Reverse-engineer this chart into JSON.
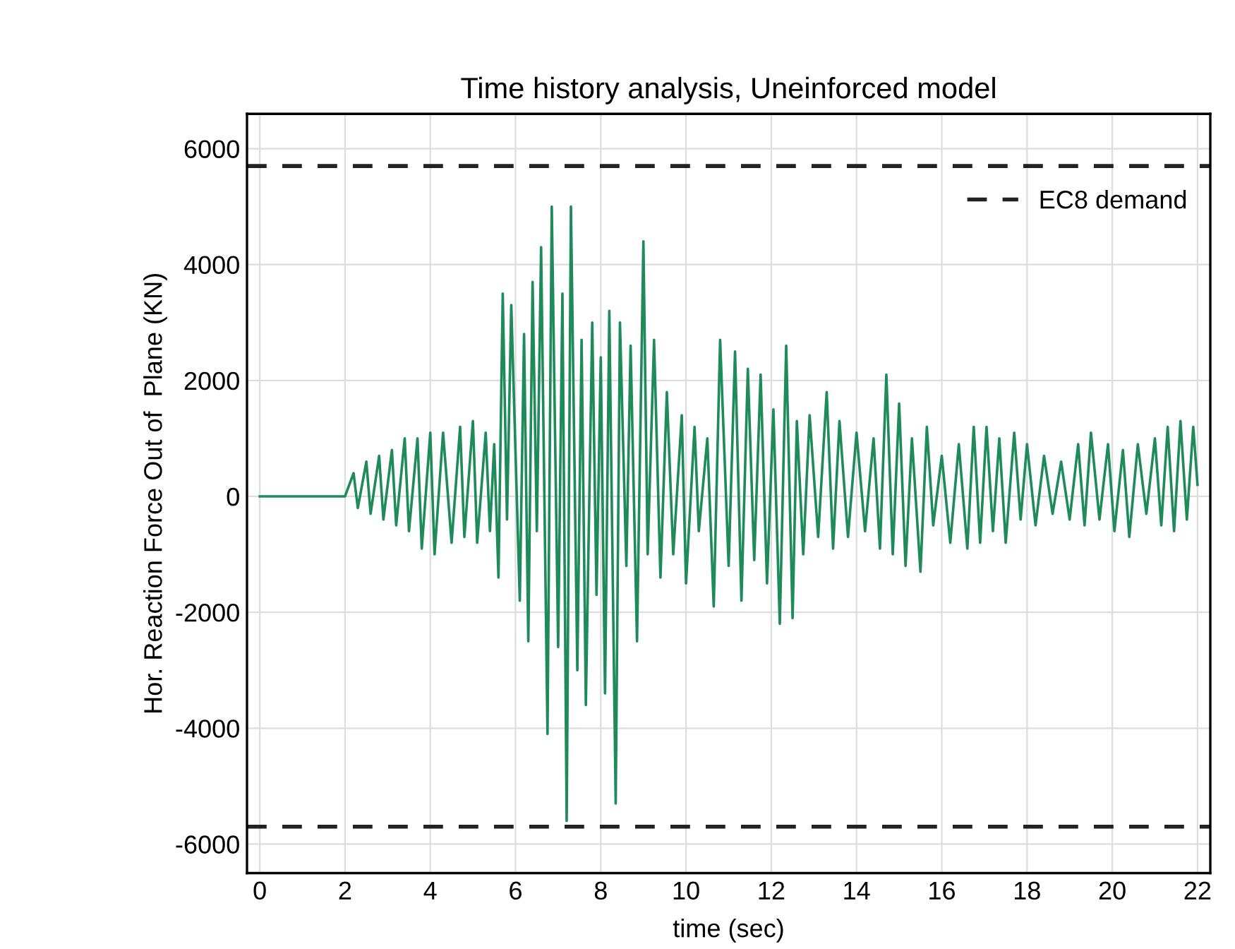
{
  "chart_data": {
    "type": "line",
    "title": "Time history analysis, Uneinforced model",
    "xlabel": "time (sec)",
    "ylabel": "Hor. Reaction Force Out of  Plane (KN)",
    "xlim": [
      -0.3,
      22.3
    ],
    "xticks": [
      0,
      2,
      4,
      6,
      8,
      10,
      12,
      14,
      16,
      18,
      20,
      22
    ],
    "ylim": [
      -6500,
      6600
    ],
    "yticks": [
      -6000,
      -4000,
      -2000,
      0,
      2000,
      4000,
      6000
    ],
    "grid": true,
    "legend": "top right",
    "line_style": "solid",
    "marker": "none",
    "series": [
      {
        "color": "#1f8a5a",
        "x": [
          0,
          2.0,
          2.2,
          2.3,
          2.5,
          2.6,
          2.8,
          2.9,
          3.1,
          3.2,
          3.4,
          3.5,
          3.7,
          3.8,
          4.0,
          4.1,
          4.3,
          4.5,
          4.7,
          4.8,
          5.0,
          5.1,
          5.3,
          5.4,
          5.5,
          5.6,
          5.7,
          5.8,
          5.9,
          6.1,
          6.2,
          6.3,
          6.4,
          6.5,
          6.6,
          6.75,
          6.85,
          7.0,
          7.1,
          7.2,
          7.3,
          7.45,
          7.55,
          7.65,
          7.8,
          7.9,
          8.0,
          8.1,
          8.2,
          8.35,
          8.45,
          8.6,
          8.7,
          8.85,
          9.0,
          9.1,
          9.25,
          9.4,
          9.55,
          9.7,
          9.9,
          10.0,
          10.2,
          10.3,
          10.5,
          10.65,
          10.8,
          11.0,
          11.15,
          11.3,
          11.45,
          11.6,
          11.75,
          11.9,
          12.05,
          12.2,
          12.35,
          12.5,
          12.6,
          12.75,
          12.9,
          13.1,
          13.3,
          13.45,
          13.6,
          13.8,
          14.0,
          14.2,
          14.4,
          14.55,
          14.7,
          14.85,
          15.0,
          15.15,
          15.3,
          15.5,
          15.65,
          15.8,
          16.0,
          16.2,
          16.4,
          16.6,
          16.75,
          16.9,
          17.05,
          17.2,
          17.35,
          17.5,
          17.7,
          17.85,
          18.0,
          18.2,
          18.4,
          18.6,
          18.8,
          19.0,
          19.2,
          19.35,
          19.5,
          19.7,
          19.9,
          20.05,
          20.25,
          20.4,
          20.6,
          20.8,
          21.0,
          21.15,
          21.3,
          21.45,
          21.6,
          21.75,
          21.9,
          22.0
        ],
        "values": [
          0,
          0,
          400,
          -200,
          600,
          -300,
          700,
          -400,
          800,
          -500,
          1000,
          -600,
          1000,
          -900,
          1100,
          -1000,
          1100,
          -800,
          1200,
          -700,
          1300,
          -800,
          1100,
          -600,
          900,
          -1400,
          3500,
          -400,
          3300,
          -1800,
          2800,
          -2500,
          3700,
          -600,
          4300,
          -4100,
          5000,
          -2600,
          3500,
          -5600,
          5000,
          -3000,
          2700,
          -3600,
          3000,
          -1700,
          2400,
          -3400,
          3200,
          -5300,
          3000,
          -1200,
          2600,
          -2500,
          4400,
          -1000,
          2700,
          -1400,
          1800,
          -1000,
          1400,
          -1500,
          1200,
          -600,
          1000,
          -1900,
          2700,
          -1200,
          2500,
          -1800,
          2200,
          -1100,
          2100,
          -1500,
          1500,
          -2200,
          2600,
          -2100,
          1300,
          -1000,
          1400,
          -700,
          1800,
          -900,
          1300,
          -700,
          1100,
          -600,
          1000,
          -900,
          2100,
          -1000,
          1600,
          -1200,
          1000,
          -1300,
          1200,
          -500,
          700,
          -800,
          900,
          -900,
          1200,
          -800,
          1200,
          -600,
          1000,
          -800,
          1100,
          -400,
          900,
          -500,
          700,
          -300,
          600,
          -400,
          900,
          -500,
          1100,
          -400,
          900,
          -600,
          800,
          -700,
          900,
          -300,
          1000,
          -500,
          1200,
          -600,
          1300,
          -400,
          1200,
          200
        ]
      }
    ],
    "ref_lines": [
      {
        "axis": "y",
        "value": 5700,
        "label": "EC8 demand",
        "color": "#222222",
        "line_style": "dashed"
      },
      {
        "axis": "y",
        "value": -5700,
        "label": null,
        "color": "#222222",
        "line_style": "dashed"
      }
    ]
  }
}
